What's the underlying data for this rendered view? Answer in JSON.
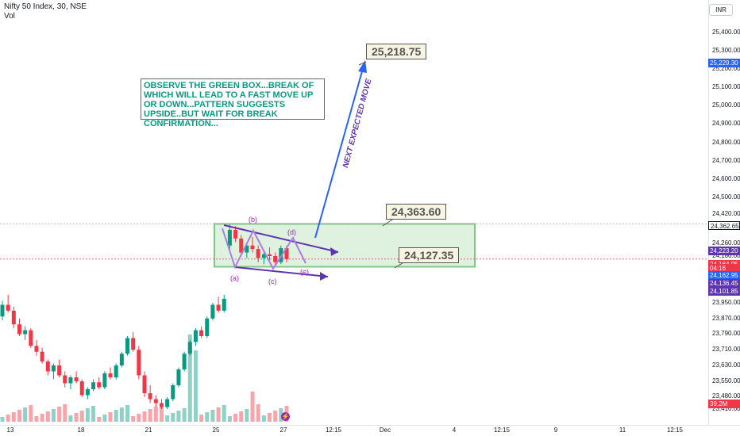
{
  "header": {
    "symbol_line": "Nifty 50 Index, 30, NSE",
    "vol_label": "Vol"
  },
  "currency": "INR",
  "price_axis": {
    "ticks": [
      "25,400.00",
      "25,300.00",
      "25,200.00",
      "25,100.00",
      "25,000.00",
      "24,900.00",
      "24,800.00",
      "24,700.00",
      "24,600.00",
      "24,500.00",
      "24,420.00",
      "24,340.00",
      "24,260.00",
      "24,180.00",
      "23,950.00",
      "23,870.00",
      "23,790.00",
      "23,710.00",
      "23,630.00",
      "23,550.00",
      "23,480.00",
      "23,410.00"
    ],
    "tags": [
      {
        "text": "25,229.30",
        "color": "#2962ff"
      },
      {
        "text": "24,362.65",
        "color": "#ffffff",
        "fg": "#131722"
      },
      {
        "text": "24,223.20",
        "color": "#5e35b1"
      },
      {
        "text": "24,164.95",
        "color": "#f23645"
      },
      {
        "text": "04:16",
        "color": "#f23645"
      },
      {
        "text": "24,162.95",
        "color": "#2962ff"
      },
      {
        "text": "24,136.45",
        "color": "#5e35b1"
      },
      {
        "text": "24,101.85",
        "color": "#5e35b1"
      },
      {
        "text": "39.2M",
        "color": "#f23645"
      }
    ]
  },
  "time_axis": [
    "13",
    "18",
    "21",
    "25",
    "27",
    "12:15",
    "Dec",
    "4",
    "12:15",
    "9",
    "11",
    "12:15"
  ],
  "annotations": {
    "note": "OBSERVE THE GREEN BOX...BREAK OF WHICH WILL LEAD TO A FAST MOVE UP OR DOWN...PATTERN SUGGESTS UPSIDE..BUT WAIT FOR BREAK CONFIRMATION...",
    "target_label": "25,218.75",
    "box_top_label": "24,363.60",
    "box_bottom_label": "24,127.35",
    "arrow_text": "NEXT EXPECTED MOVE",
    "waves": [
      "(a)",
      "(b)",
      "(c)",
      "(d)",
      "(e)"
    ]
  },
  "chart_data": {
    "type": "candlestick",
    "title": "Nifty 50 Index, 30, NSE",
    "x_labels": [
      "13",
      "18",
      "21",
      "25",
      "27"
    ],
    "ylim": [
      23410,
      25450
    ],
    "y_scale": "non-linear (as shown on axis)",
    "grid": false,
    "box": {
      "top": 24363.6,
      "bottom": 24127.35
    },
    "target": 25218.75,
    "last_price": 24164.95,
    "candles": [
      {
        "o": 23880,
        "h": 23960,
        "l": 23860,
        "c": 23940
      },
      {
        "o": 23940,
        "h": 23990,
        "l": 23900,
        "c": 23910
      },
      {
        "o": 23910,
        "h": 23930,
        "l": 23820,
        "c": 23840
      },
      {
        "o": 23840,
        "h": 23870,
        "l": 23780,
        "c": 23790
      },
      {
        "o": 23790,
        "h": 23830,
        "l": 23760,
        "c": 23810
      },
      {
        "o": 23810,
        "h": 23820,
        "l": 23720,
        "c": 23730
      },
      {
        "o": 23730,
        "h": 23760,
        "l": 23680,
        "c": 23700
      },
      {
        "o": 23700,
        "h": 23720,
        "l": 23640,
        "c": 23650
      },
      {
        "o": 23650,
        "h": 23660,
        "l": 23580,
        "c": 23600
      },
      {
        "o": 23600,
        "h": 23640,
        "l": 23560,
        "c": 23630
      },
      {
        "o": 23630,
        "h": 23660,
        "l": 23570,
        "c": 23580
      },
      {
        "o": 23580,
        "h": 23600,
        "l": 23520,
        "c": 23540
      },
      {
        "o": 23540,
        "h": 23580,
        "l": 23510,
        "c": 23570
      },
      {
        "o": 23570,
        "h": 23600,
        "l": 23540,
        "c": 23550
      },
      {
        "o": 23550,
        "h": 23560,
        "l": 23470,
        "c": 23480
      },
      {
        "o": 23480,
        "h": 23520,
        "l": 23460,
        "c": 23510
      },
      {
        "o": 23510,
        "h": 23560,
        "l": 23500,
        "c": 23545
      },
      {
        "o": 23545,
        "h": 23570,
        "l": 23510,
        "c": 23520
      },
      {
        "o": 23520,
        "h": 23600,
        "l": 23510,
        "c": 23590
      },
      {
        "o": 23590,
        "h": 23620,
        "l": 23560,
        "c": 23570
      },
      {
        "o": 23570,
        "h": 23640,
        "l": 23560,
        "c": 23630
      },
      {
        "o": 23630,
        "h": 23700,
        "l": 23620,
        "c": 23690
      },
      {
        "o": 23690,
        "h": 23780,
        "l": 23680,
        "c": 23770
      },
      {
        "o": 23770,
        "h": 23800,
        "l": 23700,
        "c": 23710
      },
      {
        "o": 23710,
        "h": 23730,
        "l": 23560,
        "c": 23580
      },
      {
        "o": 23580,
        "h": 23600,
        "l": 23470,
        "c": 23490
      },
      {
        "o": 23490,
        "h": 23530,
        "l": 23440,
        "c": 23460
      },
      {
        "o": 23460,
        "h": 23480,
        "l": 23420,
        "c": 23440
      },
      {
        "o": 23440,
        "h": 23460,
        "l": 23410,
        "c": 23420
      },
      {
        "o": 23420,
        "h": 23470,
        "l": 23410,
        "c": 23460
      },
      {
        "o": 23460,
        "h": 23540,
        "l": 23450,
        "c": 23530
      },
      {
        "o": 23530,
        "h": 23620,
        "l": 23520,
        "c": 23610
      },
      {
        "o": 23610,
        "h": 23700,
        "l": 23600,
        "c": 23690
      },
      {
        "o": 23690,
        "h": 23760,
        "l": 23680,
        "c": 23750
      },
      {
        "o": 23750,
        "h": 23820,
        "l": 23730,
        "c": 23810
      },
      {
        "o": 23810,
        "h": 23830,
        "l": 23770,
        "c": 23780
      },
      {
        "o": 23780,
        "h": 23880,
        "l": 23770,
        "c": 23870
      },
      {
        "o": 23870,
        "h": 23950,
        "l": 23860,
        "c": 23940
      },
      {
        "o": 23940,
        "h": 23980,
        "l": 23900,
        "c": 23910
      },
      {
        "o": 23910,
        "h": 23990,
        "l": 23900,
        "c": 23970
      },
      {
        "o": 24240,
        "h": 24362,
        "l": 24220,
        "c": 24330
      },
      {
        "o": 24330,
        "h": 24350,
        "l": 24260,
        "c": 24280
      },
      {
        "o": 24280,
        "h": 24300,
        "l": 24180,
        "c": 24200
      },
      {
        "o": 24200,
        "h": 24260,
        "l": 24170,
        "c": 24240
      },
      {
        "o": 24240,
        "h": 24290,
        "l": 24200,
        "c": 24220
      },
      {
        "o": 24220,
        "h": 24240,
        "l": 24150,
        "c": 24170
      },
      {
        "o": 24170,
        "h": 24210,
        "l": 24140,
        "c": 24190
      },
      {
        "o": 24190,
        "h": 24230,
        "l": 24160,
        "c": 24180
      },
      {
        "o": 24180,
        "h": 24200,
        "l": 24130,
        "c": 24150
      },
      {
        "o": 24150,
        "h": 24240,
        "l": 24140,
        "c": 24225
      },
      {
        "o": 24225,
        "h": 24240,
        "l": 24150,
        "c": 24165
      }
    ],
    "volume_unit": "M",
    "volume_last": 39.2
  }
}
